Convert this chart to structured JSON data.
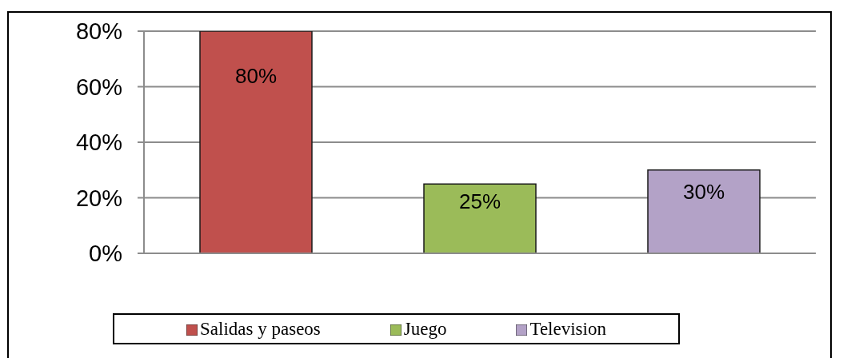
{
  "chart_data": {
    "type": "bar",
    "categories": [
      null,
      null,
      null
    ],
    "stacked": true,
    "series": [
      {
        "name": "Salidas y paseos",
        "color": "#c0504d",
        "values": [
          80,
          null,
          null
        ],
        "value_labels": [
          "80%",
          null,
          null
        ]
      },
      {
        "name": "Juego",
        "color": "#9bbb59",
        "values": [
          null,
          25,
          null
        ],
        "value_labels": [
          null,
          "25%",
          null
        ]
      },
      {
        "name": "Television",
        "color": "#b3a2c7",
        "values": [
          null,
          null,
          30
        ],
        "value_labels": [
          null,
          null,
          "30%"
        ]
      }
    ],
    "ylim": [
      0,
      80
    ],
    "yticks": [
      {
        "value": 0,
        "label": "0%"
      },
      {
        "value": 20,
        "label": "20%"
      },
      {
        "value": 40,
        "label": "40%"
      },
      {
        "value": 60,
        "label": "60%"
      },
      {
        "value": 80,
        "label": "80%"
      }
    ],
    "grid": "y",
    "legend": "bottom",
    "tick_labels": "y"
  }
}
